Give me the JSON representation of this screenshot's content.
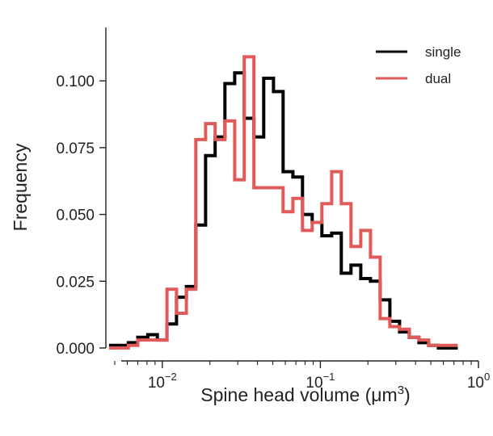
{
  "chart_data": {
    "type": "histogram-step",
    "xscale": "log",
    "xlim": [
      0.0045,
      1.0
    ],
    "ylim": [
      0.0,
      0.12
    ],
    "xlabel_prefix": "Spine head volume (μm",
    "xlabel_sup": "3",
    "xlabel_suffix": ")",
    "ylabel": "Frequency",
    "legend_position": "top-right",
    "x_ticks": [
      {
        "value": 0.01,
        "base": "10",
        "exp": "−2"
      },
      {
        "value": 0.1,
        "base": "10",
        "exp": "−1"
      },
      {
        "value": 1,
        "base": "10",
        "exp": "0"
      }
    ],
    "y_ticks": [
      {
        "value": 0.0,
        "label": "0.000"
      },
      {
        "value": 0.025,
        "label": "0.025"
      },
      {
        "value": 0.05,
        "label": "0.050"
      },
      {
        "value": 0.075,
        "label": "0.075"
      },
      {
        "value": 0.1,
        "label": "0.100"
      }
    ],
    "bin_edges": [
      0.0046,
      0.0053,
      0.0061,
      0.007,
      0.0081,
      0.0093,
      0.0107,
      0.0123,
      0.0142,
      0.0163,
      0.0188,
      0.0216,
      0.0249,
      0.0287,
      0.033,
      0.038,
      0.0438,
      0.0505,
      0.0581,
      0.067,
      0.0771,
      0.0888,
      0.1023,
      0.1179,
      0.1357,
      0.1563,
      0.1801,
      0.2074,
      0.2389,
      0.2752,
      0.3169,
      0.3651,
      0.4205,
      0.4843,
      0.5578,
      0.6425,
      0.7401
    ],
    "series": [
      {
        "name": "single",
        "color": "#000000",
        "values": [
          0.001,
          0.001,
          0.002,
          0.004,
          0.005,
          0.003,
          0.009,
          0.019,
          0.023,
          0.046,
          0.072,
          0.079,
          0.099,
          0.103,
          0.086,
          0.079,
          0.101,
          0.096,
          0.066,
          0.064,
          0.05,
          0.047,
          0.042,
          0.043,
          0.028,
          0.031,
          0.026,
          0.025,
          0.018,
          0.01,
          0.006,
          0.004,
          0.002,
          0.001,
          0.0,
          0.0
        ]
      },
      {
        "name": "dual",
        "color": "#e05a5a",
        "values": [
          0.0,
          0.0,
          0.001,
          0.003,
          0.003,
          0.003,
          0.022,
          0.013,
          0.022,
          0.078,
          0.084,
          0.078,
          0.085,
          0.063,
          0.109,
          0.06,
          0.06,
          0.06,
          0.051,
          0.056,
          0.044,
          0.047,
          0.054,
          0.066,
          0.054,
          0.038,
          0.044,
          0.034,
          0.011,
          0.008,
          0.007,
          0.004,
          0.003,
          0.001,
          0.001,
          0.001
        ]
      }
    ]
  }
}
